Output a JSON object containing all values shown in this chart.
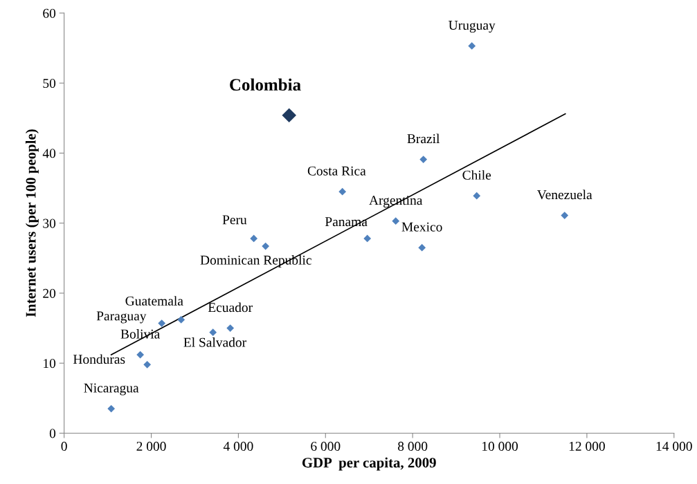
{
  "chart_data": {
    "type": "scatter",
    "xlabel": "GDP  per capita, 2009",
    "ylabel": "Internet users (per 100 people)",
    "series": [
      {
        "color": "#4f81bd",
        "marker": "diamond",
        "x": [
          9360,
          8247,
          6388,
          9471,
          11489,
          7612,
          6960,
          8215,
          4354,
          4624,
          2686,
          2241,
          3814,
          3417,
          1748,
          1907,
          1081
        ],
        "values": [
          55.3,
          39.1,
          34.5,
          33.9,
          31.1,
          30.3,
          27.8,
          26.5,
          27.8,
          26.7,
          16.2,
          15.7,
          15.0,
          14.4,
          11.2,
          9.8,
          3.5
        ]
      },
      {
        "color": "#1f3a5f",
        "marker": "diamond",
        "x": [
          5165
        ],
        "values": [
          45.4
        ]
      },
      {
        "type": "line",
        "color": "#000000",
        "marker": "none",
        "x": [
          1081,
          11505
        ],
        "values": [
          11.2,
          45.6
        ]
      }
    ],
    "annotations": [
      {
        "text": "Uruguay",
        "x": 9360,
        "y": 55.3
      },
      {
        "text": "Brazil",
        "x": 8247,
        "y": 39.1
      },
      {
        "text": "Costa Rica",
        "x": 6388,
        "y": 34.5
      },
      {
        "text": "Chile",
        "x": 9471,
        "y": 33.9
      },
      {
        "text": "Venezuela",
        "x": 11489,
        "y": 31.1
      },
      {
        "text": "Argentina",
        "x": 7612,
        "y": 30.3
      },
      {
        "text": "Panama",
        "x": 6960,
        "y": 27.8
      },
      {
        "text": "Mexico",
        "x": 8215,
        "y": 26.5
      },
      {
        "text": "Peru",
        "x": 4354,
        "y": 27.8
      },
      {
        "text": "Dominican Republic",
        "x": 4624,
        "y": 26.7
      },
      {
        "text": "Guatemala",
        "x": 2686,
        "y": 16.2
      },
      {
        "text": "Paraguay",
        "x": 2241,
        "y": 15.7
      },
      {
        "text": "Ecuador",
        "x": 3814,
        "y": 15.0
      },
      {
        "text": "El Salvador",
        "x": 3417,
        "y": 14.4
      },
      {
        "text": "Bolivia",
        "x": 1748,
        "y": 11.2
      },
      {
        "text": "Honduras",
        "x": 1907,
        "y": 9.8
      },
      {
        "text": "Nicaragua",
        "x": 1081,
        "y": 3.5
      },
      {
        "text": "Colombia",
        "x": 5165,
        "y": 45.4
      }
    ],
    "xlim": [
      0,
      14000
    ],
    "ylim": [
      0,
      60
    ],
    "xticks": [
      0,
      {
        "value": 2000,
        "label": "2 000"
      },
      {
        "value": 4000,
        "label": "4 000"
      },
      {
        "value": 6000,
        "label": "6 000"
      },
      {
        "value": 8000,
        "label": "8 000"
      },
      {
        "value": 10000,
        "label": "10 000"
      },
      {
        "value": 12000,
        "label": "12 000"
      },
      {
        "value": 14000,
        "label": "14 000"
      }
    ],
    "yticks": [
      0,
      10,
      20,
      30,
      40,
      50,
      60
    ],
    "grid": false,
    "legend": false
  }
}
